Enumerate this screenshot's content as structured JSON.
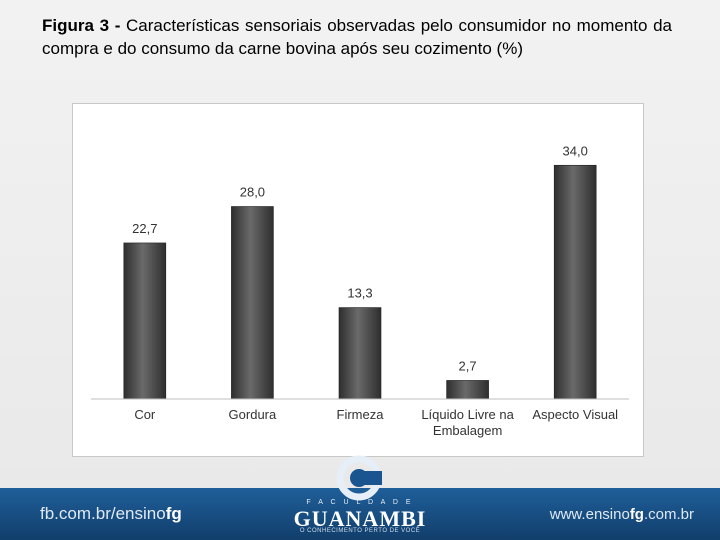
{
  "caption": {
    "label": "Figura 3 -",
    "text": " Características sensoriais observadas pelo consumidor no momento da compra e do consumo da carne bovina após seu cozimento (%)"
  },
  "chart_data": {
    "type": "bar",
    "categories": [
      "Cor",
      "Gordura",
      "Firmeza",
      "Líquido Livre na Embalagem",
      "Aspecto Visual"
    ],
    "category_lines": [
      [
        "Cor"
      ],
      [
        "Gordura"
      ],
      [
        "Firmeza"
      ],
      [
        "Líquido Livre na",
        "Embalagem"
      ],
      [
        "Aspecto Visual"
      ]
    ],
    "values": [
      22.7,
      28.0,
      13.3,
      2.7,
      34.0
    ],
    "value_labels": [
      "22,7",
      "28,0",
      "13,3",
      "2,7",
      "34,0"
    ],
    "ylim": [
      0,
      40
    ],
    "grid": false,
    "bar_color": "#4a4a4a"
  },
  "footer": {
    "left_prefix": "fb.com.br/ensino",
    "left_accent": "fg",
    "right_prefix": "www.ensino",
    "right_accent": "fg",
    "right_suffix": ".com.br"
  },
  "logo": {
    "top": "F A C U L D A D E",
    "name": "GUANAMBI",
    "tagline": "O CONHECIMENTO PERTO DE VOCÊ"
  },
  "colors": {
    "footer": "#1a5089",
    "logo_ring": "#e6eef7"
  }
}
